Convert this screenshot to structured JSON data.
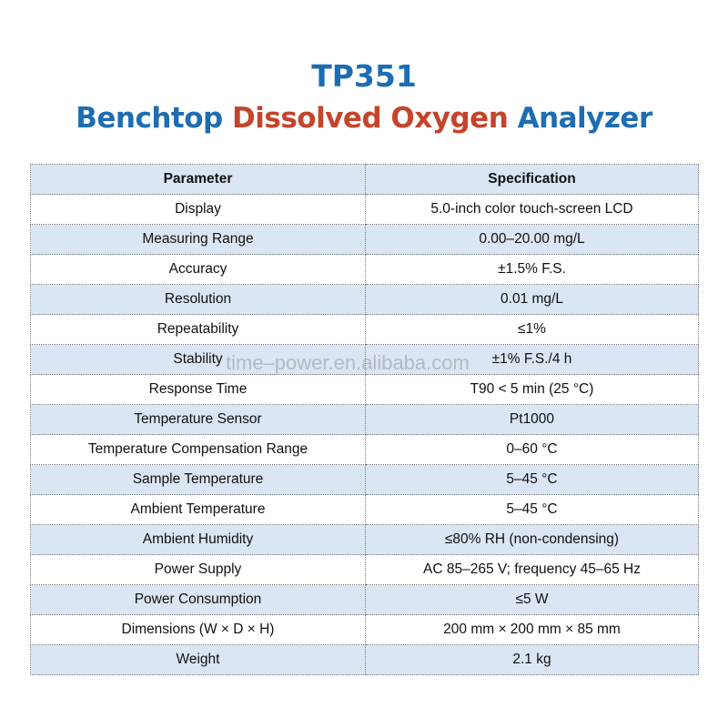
{
  "header": {
    "title": "TP351",
    "subtitle": [
      "Benchtop",
      "Dissolved Oxygen",
      "Analyzer"
    ]
  },
  "table": {
    "columns": [
      "Parameter",
      "Specification"
    ],
    "rows": [
      [
        "Display",
        "5.0-inch color touch-screen LCD"
      ],
      [
        "Measuring Range",
        "0.00–20.00 mg/L"
      ],
      [
        "Accuracy",
        "±1.5% F.S."
      ],
      [
        "Resolution",
        "0.01 mg/L"
      ],
      [
        "Repeatability",
        "≤1%"
      ],
      [
        "Stability",
        "±1% F.S./4 h"
      ],
      [
        "Response Time",
        "T90 < 5 min (25 °C)"
      ],
      [
        "Temperature Sensor",
        "Pt1000"
      ],
      [
        "Temperature Compensation Range",
        "0–60 °C"
      ],
      [
        "Sample Temperature",
        "5–45 °C"
      ],
      [
        "Ambient Temperature",
        "5–45 °C"
      ],
      [
        "Ambient Humidity",
        "≤80% RH (non-condensing)"
      ],
      [
        "Power Supply",
        "AC 85–265 V; frequency 45–65 Hz"
      ],
      [
        "Power Consumption",
        "≤5 W"
      ],
      [
        "Dimensions (W × D × H)",
        "200 mm × 200 mm × 85 mm"
      ],
      [
        "Weight",
        "2.1 kg"
      ]
    ]
  },
  "watermark": "time–power.en.alibaba.com"
}
